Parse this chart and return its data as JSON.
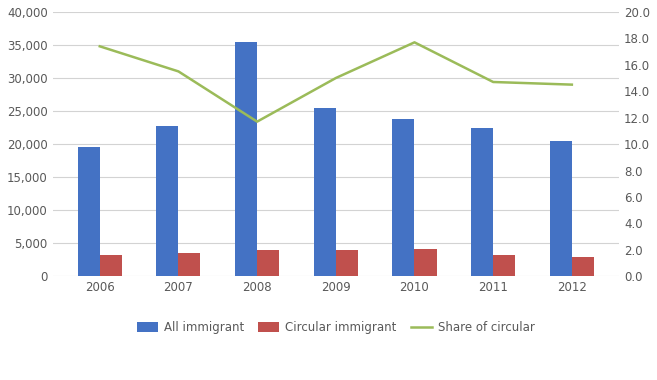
{
  "years": [
    2006,
    2007,
    2008,
    2009,
    2010,
    2011,
    2012
  ],
  "all_immigrants": [
    19500,
    22700,
    35400,
    25500,
    23800,
    22500,
    20500
  ],
  "circular_immigrants": [
    3200,
    3500,
    4000,
    3900,
    4200,
    3200,
    2900
  ],
  "share_of_circular": [
    17.4,
    15.5,
    11.7,
    15.0,
    17.7,
    14.7,
    14.5
  ],
  "bar_width": 0.28,
  "bar_color_all": "#4472C4",
  "bar_color_circular": "#C0504D",
  "line_color_share": "#9BBB59",
  "ylim_left": [
    0,
    40000
  ],
  "ylim_right": [
    0,
    20.0
  ],
  "yticks_left": [
    0,
    5000,
    10000,
    15000,
    20000,
    25000,
    30000,
    35000,
    40000
  ],
  "yticks_right": [
    0.0,
    2.0,
    4.0,
    6.0,
    8.0,
    10.0,
    12.0,
    14.0,
    16.0,
    18.0,
    20.0
  ],
  "legend_labels": [
    "All immigrant",
    "Circular immigrant",
    "Share of circular"
  ],
  "background_color": "#ffffff",
  "grid_color": "#d3d3d3",
  "tick_label_color": "#595959",
  "font_size": 8.5
}
